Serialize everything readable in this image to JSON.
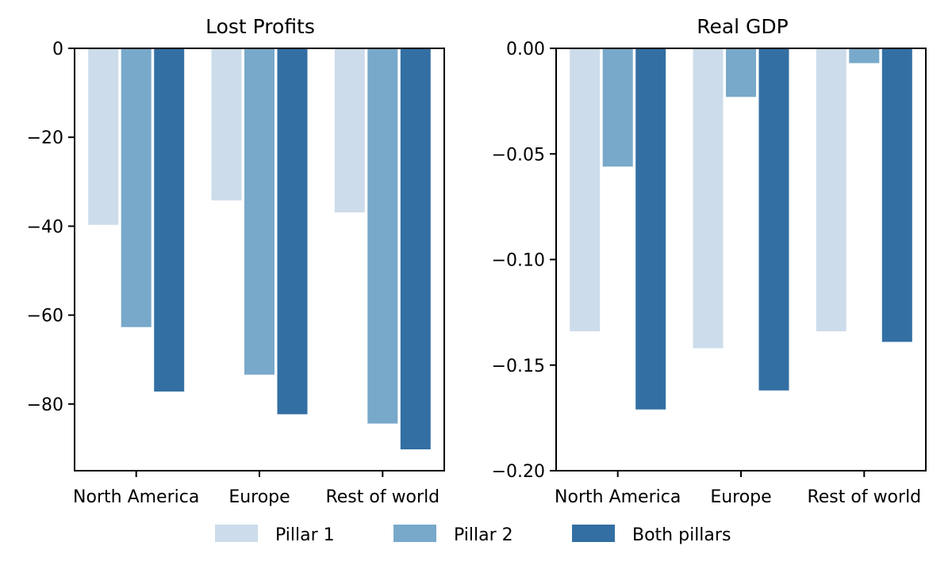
{
  "chart_data": [
    {
      "type": "bar",
      "title": "Lost Profits",
      "categories": [
        "North America",
        "Europe",
        "Rest of world"
      ],
      "series": [
        {
          "name": "Pillar 1",
          "values": [
            -39.7,
            -34.2,
            -36.9
          ]
        },
        {
          "name": "Pillar 2",
          "values": [
            -62.7,
            -73.4,
            -84.4
          ]
        },
        {
          "name": "Both pillars",
          "values": [
            -77.2,
            -82.3,
            -90.2
          ]
        }
      ],
      "ylim": [
        -95,
        0
      ],
      "yticks": [
        0,
        -20,
        -40,
        -60,
        -80
      ],
      "ytick_labels": [
        "0",
        "−20",
        "−40",
        "−60",
        "−80"
      ],
      "xlabel": "",
      "ylabel": ""
    },
    {
      "type": "bar",
      "title": "Real GDP",
      "categories": [
        "North America",
        "Europe",
        "Rest of world"
      ],
      "series": [
        {
          "name": "Pillar 1",
          "values": [
            -0.134,
            -0.142,
            -0.134
          ]
        },
        {
          "name": "Pillar 2",
          "values": [
            -0.056,
            -0.023,
            -0.007
          ]
        },
        {
          "name": "Both pillars",
          "values": [
            -0.171,
            -0.162,
            -0.139
          ]
        }
      ],
      "ylim": [
        -0.2,
        0
      ],
      "yticks": [
        0,
        -0.05,
        -0.1,
        -0.15,
        -0.2
      ],
      "ytick_labels": [
        "0.00",
        "−0.05",
        "−0.10",
        "−0.15",
        "−0.20"
      ],
      "xlabel": "",
      "ylabel": ""
    }
  ],
  "legend": {
    "position": "bottom-center",
    "items": [
      {
        "label": "Pillar 1",
        "color": "#ccdcea"
      },
      {
        "label": "Pillar 2",
        "color": "#78a9ca"
      },
      {
        "label": "Both pillars",
        "color": "#336fa3"
      }
    ]
  }
}
